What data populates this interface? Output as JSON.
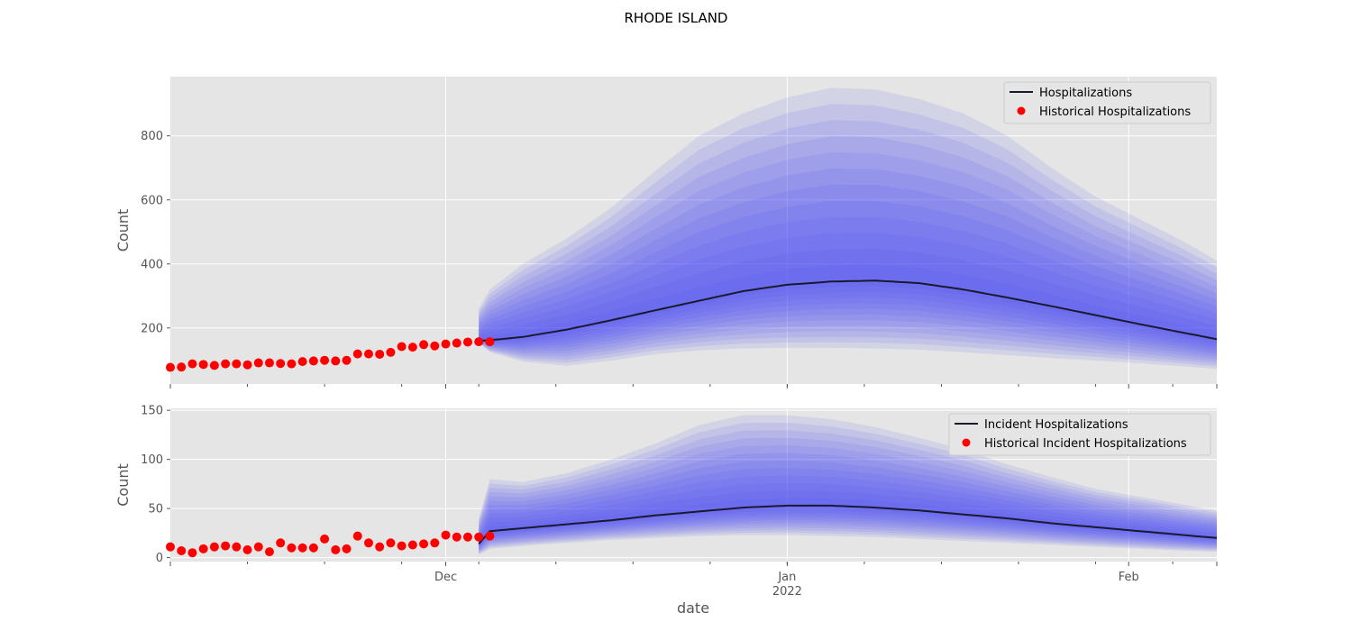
{
  "figure": {
    "suptitle": "RHODE ISLAND",
    "xlabel": "date"
  },
  "colors": {
    "panel_bg": "#e5e5e5",
    "grid": "#ffffff",
    "band": "#4b4bf5",
    "median_line": "#1a1a2e",
    "historical": "#ff0000",
    "tick_text": "#555555"
  },
  "x_axis": {
    "tick_labels": [
      {
        "date": "2021-12-01",
        "label": "Dec",
        "sublabel": ""
      },
      {
        "date": "2022-01-01",
        "label": "Jan",
        "sublabel": "2022"
      },
      {
        "date": "2022-02-01",
        "label": "Feb",
        "sublabel": ""
      }
    ]
  },
  "chart_data": [
    {
      "type": "area",
      "ylabel": "Count",
      "ylim": [
        25,
        985
      ],
      "yticks": [
        200,
        400,
        600,
        800
      ],
      "xlim": [
        "2021-11-06",
        "2022-02-09"
      ],
      "grid": true,
      "legend_position": "top-right",
      "legend": [
        "Hospitalizations",
        "Historical Hospitalizations"
      ],
      "historical": {
        "name": "Historical Hospitalizations",
        "x": [
          "2021-11-06",
          "2021-11-07",
          "2021-11-08",
          "2021-11-09",
          "2021-11-10",
          "2021-11-11",
          "2021-11-12",
          "2021-11-13",
          "2021-11-14",
          "2021-11-15",
          "2021-11-16",
          "2021-11-17",
          "2021-11-18",
          "2021-11-19",
          "2021-11-20",
          "2021-11-21",
          "2021-11-22",
          "2021-11-23",
          "2021-11-24",
          "2021-11-25",
          "2021-11-26",
          "2021-11-27",
          "2021-11-28",
          "2021-11-29",
          "2021-11-30",
          "2021-12-01",
          "2021-12-02",
          "2021-12-03",
          "2021-12-04",
          "2021-12-05"
        ],
        "y": [
          77,
          78,
          88,
          86,
          83,
          88,
          88,
          85,
          91,
          91,
          89,
          88,
          95,
          97,
          99,
          97,
          99,
          119,
          119,
          118,
          124,
          142,
          140,
          148,
          144,
          150,
          153,
          156,
          157,
          157
        ]
      },
      "forecast": {
        "name": "Hospitalizations",
        "x": [
          "2021-12-04",
          "2021-12-05",
          "2021-12-08",
          "2021-12-12",
          "2021-12-16",
          "2021-12-20",
          "2021-12-24",
          "2021-12-28",
          "2022-01-01",
          "2022-01-05",
          "2022-01-09",
          "2022-01-13",
          "2022-01-17",
          "2022-01-21",
          "2022-01-25",
          "2022-01-29",
          "2022-02-02",
          "2022-02-06",
          "2022-02-09"
        ],
        "median": [
          160,
          162,
          172,
          195,
          224,
          255,
          285,
          315,
          335,
          345,
          348,
          340,
          320,
          295,
          268,
          240,
          212,
          185,
          165
        ],
        "lower": [
          153,
          125,
          95,
          82,
          98,
          118,
          130,
          136,
          138,
          138,
          136,
          132,
          124,
          115,
          106,
          98,
          90,
          80,
          72
        ],
        "upper": [
          260,
          320,
          400,
          480,
          575,
          690,
          800,
          870,
          920,
          950,
          945,
          915,
          870,
          800,
          700,
          610,
          540,
          470,
          410
        ]
      }
    },
    {
      "type": "area",
      "ylabel": "Count",
      "ylim": [
        -4,
        152
      ],
      "yticks": [
        0,
        50,
        100,
        150
      ],
      "xlim": [
        "2021-11-06",
        "2022-02-09"
      ],
      "grid": true,
      "legend_position": "top-right",
      "legend": [
        "Incident Hospitalizations",
        "Historical Incident Hospitalizations"
      ],
      "historical": {
        "name": "Historical Incident Hospitalizations",
        "x": [
          "2021-11-06",
          "2021-11-07",
          "2021-11-08",
          "2021-11-09",
          "2021-11-10",
          "2021-11-11",
          "2021-11-12",
          "2021-11-13",
          "2021-11-14",
          "2021-11-15",
          "2021-11-16",
          "2021-11-17",
          "2021-11-18",
          "2021-11-19",
          "2021-11-20",
          "2021-11-21",
          "2021-11-22",
          "2021-11-23",
          "2021-11-24",
          "2021-11-25",
          "2021-11-26",
          "2021-11-27",
          "2021-11-28",
          "2021-11-29",
          "2021-11-30",
          "2021-12-01",
          "2021-12-02",
          "2021-12-03",
          "2021-12-04",
          "2021-12-05"
        ],
        "y": [
          11,
          7,
          5,
          9,
          11,
          12,
          11,
          8,
          11,
          6,
          15,
          10,
          10,
          10,
          19,
          8,
          9,
          22,
          15,
          11,
          15,
          12,
          13,
          14,
          15,
          23,
          21,
          21,
          21,
          22
        ]
      },
      "forecast": {
        "name": "Incident Hospitalizations",
        "x": [
          "2021-12-04",
          "2021-12-05",
          "2021-12-08",
          "2021-12-12",
          "2021-12-16",
          "2021-12-20",
          "2021-12-24",
          "2021-12-28",
          "2022-01-01",
          "2022-01-05",
          "2022-01-09",
          "2022-01-13",
          "2022-01-17",
          "2022-01-21",
          "2022-01-25",
          "2022-01-29",
          "2022-02-02",
          "2022-02-06",
          "2022-02-09"
        ],
        "median": [
          14,
          27,
          30,
          34,
          38,
          43,
          47,
          51,
          53,
          53,
          51,
          48,
          44,
          40,
          35,
          31,
          27,
          23,
          20
        ],
        "lower": [
          3,
          9,
          12,
          15,
          18,
          20,
          22,
          23,
          23,
          22,
          21,
          19,
          17,
          15,
          13,
          11,
          9,
          7,
          6
        ],
        "upper": [
          40,
          80,
          77,
          86,
          100,
          116,
          135,
          145,
          145,
          141,
          133,
          122,
          110,
          95,
          82,
          70,
          62,
          54,
          48
        ]
      }
    }
  ]
}
